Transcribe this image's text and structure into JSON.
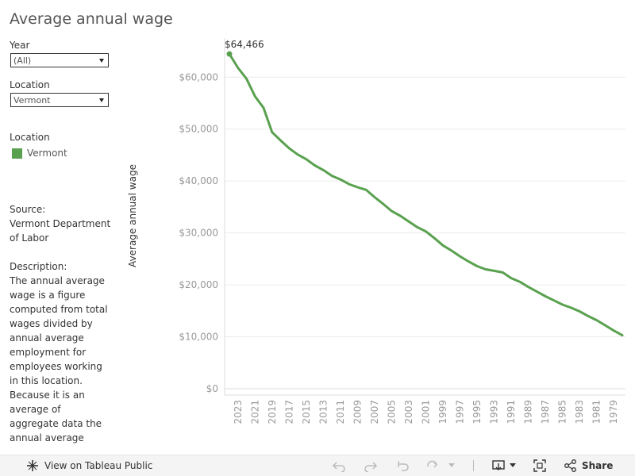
{
  "title": "Average annual wage",
  "filters": {
    "year": {
      "label": "Year",
      "selected": "(All)"
    },
    "location": {
      "label": "Location",
      "selected": "Vermont"
    }
  },
  "legend": {
    "title": "Location",
    "items": [
      {
        "label": "Vermont",
        "color": "#59a14f"
      }
    ]
  },
  "source": {
    "heading": "Source:",
    "text": "Vermont Department of Labor"
  },
  "description": {
    "heading": "Description",
    "text": "The annual average wage is a figure computed from total wages divided by annual average employment for employees working in this location. Because it is an average of aggregate data the annual average wage should not be used to"
  },
  "footer": {
    "view_label": "View on Tableau Public",
    "share_label": "Share"
  },
  "colors": {
    "line": "#59a14f",
    "grid": "#ececec",
    "axis_text": "#999999"
  },
  "chart_data": {
    "type": "line",
    "title": "Average annual wage",
    "xlabel": "",
    "ylabel": "Average annual wage",
    "x": [
      2024,
      2023,
      2022,
      2021,
      2020,
      2019,
      2018,
      2017,
      2016,
      2015,
      2014,
      2013,
      2012,
      2011,
      2010,
      2009,
      2008,
      2007,
      2006,
      2005,
      2004,
      2003,
      2002,
      2001,
      2000,
      1999,
      1998,
      1997,
      1996,
      1995,
      1994,
      1993,
      1992,
      1991,
      1990,
      1989,
      1988,
      1987,
      1986,
      1985,
      1984,
      1983,
      1982,
      1981,
      1980,
      1979,
      1978
    ],
    "series": [
      {
        "name": "Vermont",
        "values": [
          64466,
          61800,
          59700,
          56300,
          54100,
          49400,
          47800,
          46300,
          45100,
          44200,
          43000,
          42100,
          41000,
          40300,
          39400,
          38800,
          38300,
          36900,
          35600,
          34200,
          33300,
          32200,
          31100,
          30300,
          29000,
          27600,
          26600,
          25500,
          24500,
          23600,
          23000,
          22700,
          22400,
          21300,
          20600,
          19600,
          18700,
          17800,
          17000,
          16200,
          15600,
          14900,
          14000,
          13200,
          12200,
          11200,
          10300
        ]
      }
    ],
    "annotations": [
      {
        "x": 2024,
        "y": 64466,
        "label": "$64,466"
      }
    ],
    "yticks": [
      0,
      10000,
      20000,
      30000,
      40000,
      50000,
      60000
    ],
    "ytick_labels": [
      "$0",
      "$10,000",
      "$20,000",
      "$30,000",
      "$40,000",
      "$50,000",
      "$60,000"
    ],
    "xtick_labels": [
      "2023",
      "2021",
      "2019",
      "2017",
      "2015",
      "2013",
      "2011",
      "2009",
      "2007",
      "2005",
      "2003",
      "2001",
      "1999",
      "1997",
      "1995",
      "1993",
      "1991",
      "1989",
      "1987",
      "1985",
      "1983",
      "1981",
      "1979"
    ],
    "ylim": [
      0,
      66000
    ],
    "xlim": [
      2024,
      1978
    ],
    "grid": true,
    "legend_position": "left"
  }
}
